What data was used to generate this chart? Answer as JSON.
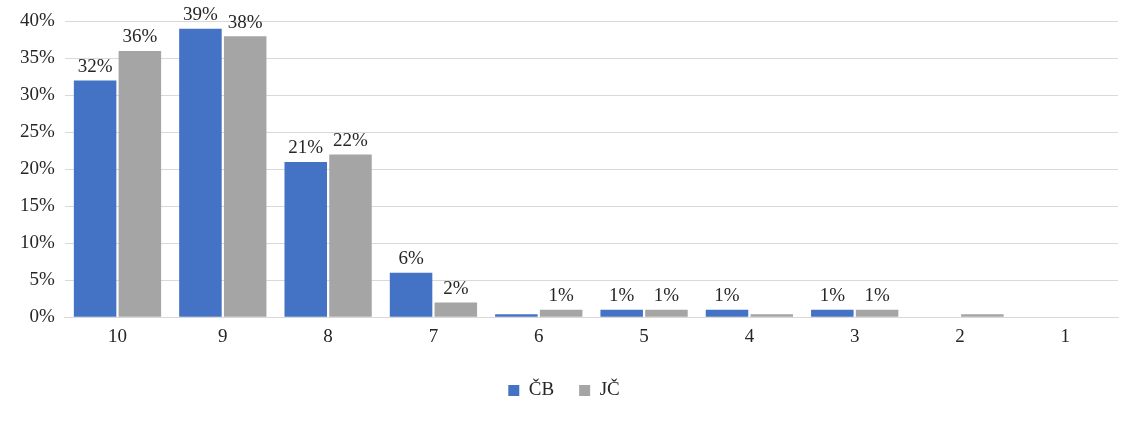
{
  "chart_data": {
    "type": "bar",
    "categories": [
      "10",
      "9",
      "8",
      "7",
      "6",
      "5",
      "4",
      "3",
      "2",
      "1"
    ],
    "series": [
      {
        "name": "ČB",
        "color": "#4472c4",
        "values": [
          32,
          39,
          21,
          6,
          0.4,
          1,
          1,
          1,
          0,
          0
        ],
        "value_labels": [
          "32%",
          "39%",
          "21%",
          "6%",
          null,
          "1%",
          "1%",
          "1%",
          null,
          null
        ]
      },
      {
        "name": "JČ",
        "color": "#a5a5a5",
        "values": [
          36,
          38,
          22,
          2,
          1,
          1,
          0.4,
          1,
          0.4,
          0
        ],
        "value_labels": [
          "36%",
          "38%",
          "22%",
          "2%",
          "1%",
          "1%",
          null,
          "1%",
          null,
          null
        ]
      }
    ],
    "ylim": [
      0,
      40
    ],
    "yticks": [
      {
        "value": 0,
        "label": "0%"
      },
      {
        "value": 5,
        "label": "5%"
      },
      {
        "value": 10,
        "label": "10%"
      },
      {
        "value": 15,
        "label": "15%"
      },
      {
        "value": 20,
        "label": "20%"
      },
      {
        "value": 25,
        "label": "25%"
      },
      {
        "value": 30,
        "label": "30%"
      },
      {
        "value": 35,
        "label": "35%"
      },
      {
        "value": 40,
        "label": "40%"
      }
    ],
    "grid": "y",
    "legend": "bottom"
  }
}
